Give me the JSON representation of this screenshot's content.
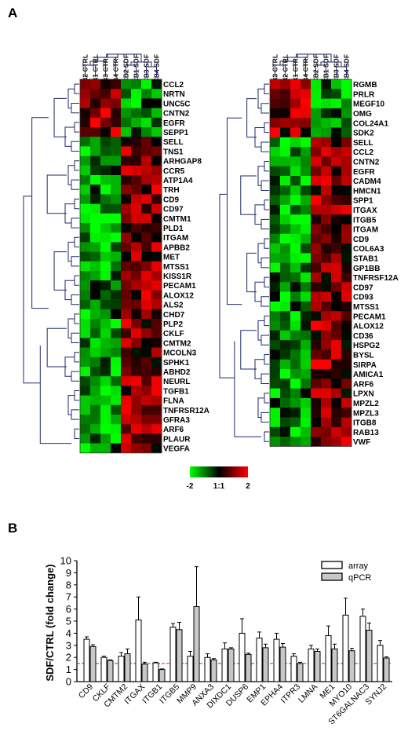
{
  "panel_a_label": "A",
  "panel_b_label": "B",
  "heatmap_left": {
    "columns": [
      "CB2 CTRL",
      "CB1 CTRL",
      "CB3 CTRL",
      "CB4 CTRL",
      "CB2 SDF",
      "CB1 SDF",
      "CB3 SDF",
      "CB4 SDF"
    ],
    "genes": [
      "CCL2",
      "NRTN",
      "UNC5C",
      "CNTN2",
      "EGFR",
      "SEPP1",
      "SELL",
      "TNS1",
      "ARHGAP8",
      "CCR5",
      "ATP1A4",
      "TRH",
      "CD9",
      "CD97",
      "CMTM1",
      "PLD1",
      "ITGAM",
      "APBB2",
      "MET",
      "MTSS1",
      "KISS1R",
      "PECAM1",
      "ALOX12",
      "ALS2",
      "CHD7",
      "PLP2",
      "CKLF",
      "CMTM2",
      "MCOLN3",
      "SPHK1",
      "ABHD2",
      "NEURL",
      "TGFB1",
      "FLNA",
      "TNFRSR12A",
      "GFRA3",
      "ARF6",
      "PLAUR",
      "VEGFA"
    ]
  },
  "heatmap_right": {
    "columns": [
      "CB3 CTRL",
      "CB2 CTRL",
      "CB1 CTRL",
      "CB4 CTRL",
      "CB2 SDF",
      "CB1 SDF",
      "CB3 SDF",
      "CB4 SDF"
    ],
    "genes": [
      "RGMB",
      "PRLR",
      "MEGF10",
      "OMG",
      "COL24A1",
      "SDK2",
      "SELL",
      "CCL2",
      "CNTN2",
      "EGFR",
      "CADM4",
      "HMCN1",
      "SPP1",
      "ITGAX",
      "ITGB5",
      "ITGAM",
      "CD9",
      "COL6A3",
      "STAB1",
      "GP1BB",
      "TNFRSF12A",
      "CD97",
      "CD93",
      "MTSS1",
      "PECAM1",
      "ALOX12",
      "CD36",
      "HSPG2",
      "BYSL",
      "SIRPA",
      "AMICA1",
      "ARF6",
      "LPXN",
      "MPZL2",
      "MPZL3",
      "ITGB8",
      "RAB13",
      "VWF"
    ]
  },
  "colorbar": {
    "min_label": "-2",
    "mid_label": "1:1",
    "max_label": "2",
    "low_color": "#00ff00",
    "mid_color": "#000000",
    "high_color": "#ff0000"
  },
  "chart_data": {
    "type": "bar",
    "title": "",
    "ylabel": "SDF/CTRL (fold change)",
    "xlabel": "",
    "ylim": [
      0,
      10
    ],
    "yticks": [
      "0",
      "1",
      "2",
      "3",
      "4",
      "5",
      "6",
      "7",
      "8",
      "9",
      "10"
    ],
    "threshold_line": 1.5,
    "threshold_color": "#d62728",
    "legend_position": "top-right",
    "categories": [
      "CD9",
      "CKLF",
      "CMTM2",
      "ITGAX",
      "ITGB1",
      "ITGB5",
      "MMP9",
      "ANXA3",
      "DIXDC1",
      "DUSP6",
      "EMP1",
      "EPHA4",
      "ITPR3",
      "LMNA",
      "ME1",
      "MYO10",
      "ST6GALNAC3",
      "SYNJ2"
    ],
    "series": [
      {
        "name": "array",
        "color": "#ffffff",
        "values": [
          3.5,
          2.0,
          2.1,
          5.1,
          1.55,
          4.5,
          2.1,
          2.0,
          2.7,
          4.0,
          3.6,
          3.5,
          2.1,
          2.7,
          3.8,
          5.5,
          5.4,
          3.0
        ],
        "errors": [
          0.2,
          0.1,
          0.3,
          1.9,
          0.05,
          0.3,
          0.4,
          0.3,
          0.5,
          1.2,
          0.5,
          0.5,
          0.2,
          0.3,
          0.8,
          1.4,
          0.6,
          0.4
        ]
      },
      {
        "name": "qPCR",
        "color": "#c8c8c8",
        "values": [
          2.9,
          1.75,
          2.3,
          1.45,
          1.0,
          4.3,
          6.2,
          1.8,
          2.7,
          2.25,
          2.8,
          2.85,
          1.5,
          2.5,
          2.7,
          2.55,
          4.25,
          1.95
        ],
        "errors": [
          0.15,
          0.05,
          0.4,
          0.15,
          0.05,
          0.6,
          3.3,
          0.1,
          0.1,
          0.1,
          0.3,
          0.3,
          0.1,
          0.2,
          0.4,
          0.2,
          0.6,
          0.1
        ]
      }
    ]
  }
}
